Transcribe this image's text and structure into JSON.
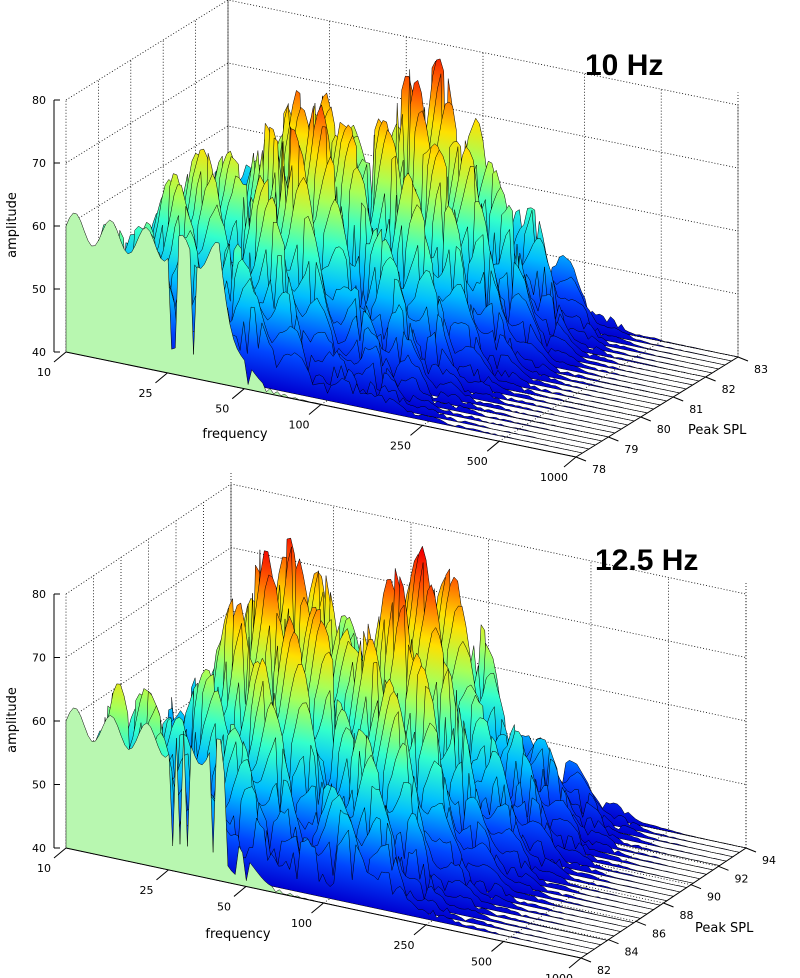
{
  "chart_data": [
    {
      "type": "surface",
      "title": "10 Hz",
      "xlabel": "frequency",
      "ylabel": "Peak SPL",
      "zlabel": "amplitude",
      "x_scale": "log",
      "xlim": [
        10,
        1000
      ],
      "x_ticks": [
        10,
        25,
        50,
        100,
        250,
        500,
        1000
      ],
      "ylim": [
        78,
        83
      ],
      "y_ticks": [
        78,
        79,
        80,
        81,
        82,
        83
      ],
      "zlim": [
        40,
        80
      ],
      "z_ticks": [
        40,
        50,
        60,
        70,
        80
      ],
      "grid": true,
      "colormap": "jet",
      "front_slice_color": "#b8f7b0",
      "peaks": [
        {
          "freq": 14,
          "spl": 78,
          "amp": 61
        },
        {
          "freq": 20,
          "spl": 80,
          "amp": 68
        },
        {
          "freq": 30,
          "spl": 81.5,
          "amp": 74
        },
        {
          "freq": 45,
          "spl": 80.5,
          "amp": 76
        },
        {
          "freq": 70,
          "spl": 82.5,
          "amp": 79
        },
        {
          "freq": 110,
          "spl": 81.5,
          "amp": 71
        },
        {
          "freq": 180,
          "spl": 82,
          "amp": 60
        }
      ]
    },
    {
      "type": "surface",
      "title": "12.5 Hz",
      "xlabel": "frequency",
      "ylabel": "Peak SPL",
      "zlabel": "amplitude",
      "x_scale": "log",
      "xlim": [
        10,
        1000
      ],
      "x_ticks": [
        10,
        25,
        50,
        100,
        250,
        500,
        1000
      ],
      "ylim": [
        82,
        94
      ],
      "y_ticks": [
        82,
        84,
        86,
        88,
        90,
        92,
        94
      ],
      "zlim": [
        40,
        80
      ],
      "z_ticks": [
        40,
        50,
        60,
        70,
        80
      ],
      "grid": true,
      "colormap": "jet",
      "front_slice_color": "#b8f7b0",
      "peaks": [
        {
          "freq": 16,
          "spl": 82,
          "amp": 67
        },
        {
          "freq": 25,
          "spl": 90,
          "amp": 80
        },
        {
          "freq": 40,
          "spl": 88,
          "amp": 74
        },
        {
          "freq": 75,
          "spl": 91,
          "amp": 81
        },
        {
          "freq": 110,
          "spl": 88,
          "amp": 70
        },
        {
          "freq": 220,
          "spl": 90,
          "amp": 60
        }
      ]
    }
  ]
}
